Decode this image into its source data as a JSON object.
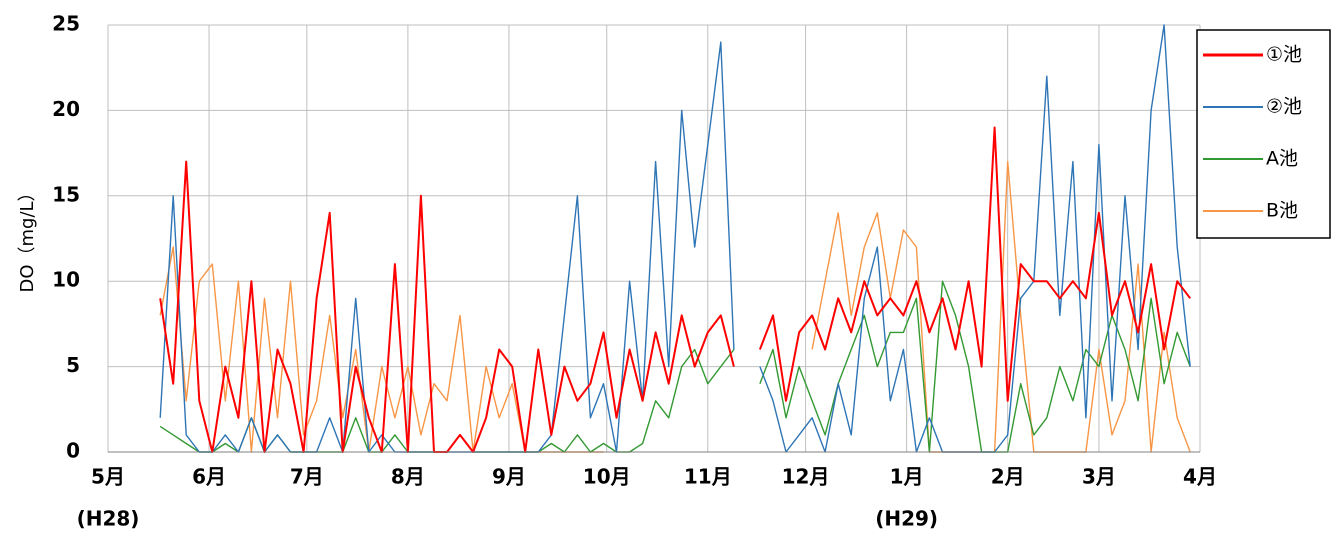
{
  "chart_data": {
    "type": "line",
    "y_label": "DO（mg/L）",
    "x": [
      16,
      20,
      24,
      28,
      32,
      36,
      40,
      44,
      48,
      52,
      56,
      60,
      64,
      68,
      72,
      76,
      80,
      84,
      88,
      92,
      96,
      100,
      104,
      108,
      112,
      116,
      120,
      124,
      128,
      132,
      136,
      140,
      144,
      148,
      152,
      156,
      160,
      164,
      168,
      172,
      176,
      180,
      184,
      188,
      192,
      196,
      200,
      204,
      208,
      212,
      216,
      220,
      224,
      228,
      232,
      236,
      240,
      244,
      248,
      252,
      256,
      260,
      264,
      268,
      272,
      276,
      280,
      284,
      288,
      292,
      296,
      300,
      304,
      308,
      312,
      316,
      320,
      324,
      328,
      332
    ],
    "xlim": [
      0,
      335
    ],
    "xticks": [
      {
        "value": 0,
        "label": "5月"
      },
      {
        "value": 31,
        "label": "6月"
      },
      {
        "value": 61,
        "label": "7月"
      },
      {
        "value": 92,
        "label": "8月"
      },
      {
        "value": 123,
        "label": "9月"
      },
      {
        "value": 153,
        "label": "10月"
      },
      {
        "value": 184,
        "label": "11月"
      },
      {
        "value": 214,
        "label": "12月"
      },
      {
        "value": 245,
        "label": "1月"
      },
      {
        "value": 276,
        "label": "2月"
      },
      {
        "value": 304,
        "label": "3月"
      },
      {
        "value": 335,
        "label": "4月"
      }
    ],
    "x_era_labels": [
      {
        "value": 0,
        "label": "(H28)"
      },
      {
        "value": 245,
        "label": "(H29)"
      }
    ],
    "ylim": [
      0,
      25
    ],
    "yticks": [
      0,
      5,
      10,
      15,
      20,
      25
    ],
    "grid": true,
    "legend": "right",
    "series": [
      {
        "name": "①池",
        "color": "#ff0000",
        "values": [
          9,
          4,
          17,
          3,
          0,
          5,
          2,
          10,
          0,
          6,
          4,
          0,
          9,
          14,
          0,
          5,
          2,
          0,
          11,
          0,
          15,
          0,
          0,
          1,
          0,
          2,
          6,
          5,
          0,
          6,
          1,
          5,
          3,
          4,
          7,
          2,
          6,
          3,
          7,
          4,
          8,
          5,
          7,
          8,
          5,
          null,
          6,
          8,
          3,
          7,
          8,
          6,
          9,
          7,
          10,
          8,
          9,
          8,
          10,
          7,
          9,
          6,
          10,
          5,
          19,
          3,
          11,
          10,
          10,
          9,
          10,
          9,
          14,
          8,
          10,
          7,
          11,
          6,
          10,
          9
        ]
      },
      {
        "name": "②池",
        "color": "#2e75b6",
        "values": [
          2,
          15,
          1,
          0,
          0,
          1,
          0,
          2,
          0,
          1,
          0,
          0,
          0,
          2,
          0,
          9,
          0,
          1,
          0,
          0,
          0,
          0,
          0,
          0,
          0,
          0,
          0,
          0,
          0,
          0,
          1,
          8,
          15,
          2,
          4,
          0,
          10,
          3,
          17,
          5,
          20,
          12,
          18,
          24,
          6,
          null,
          5,
          3,
          0,
          1,
          2,
          0,
          4,
          1,
          9,
          12,
          3,
          6,
          0,
          2,
          0,
          0,
          0,
          0,
          0,
          1,
          9,
          10,
          22,
          8,
          17,
          2,
          18,
          3,
          15,
          6,
          20,
          25,
          12,
          5
        ]
      },
      {
        "name": "A池",
        "color": "#339933",
        "values": [
          1.5,
          1,
          0.5,
          0,
          0,
          0.5,
          0,
          2,
          0,
          1,
          0,
          0,
          0,
          0,
          0,
          2,
          0,
          0,
          1,
          0,
          0,
          0,
          0,
          1,
          0,
          0,
          0,
          0,
          0,
          0,
          0.5,
          0,
          1,
          0,
          0.5,
          0,
          0,
          0.5,
          3,
          2,
          5,
          6,
          4,
          5,
          6,
          null,
          4,
          6,
          2,
          5,
          3,
          1,
          4,
          6,
          8,
          5,
          7,
          7,
          9,
          0,
          10,
          8,
          5,
          0,
          0,
          0,
          4,
          1,
          2,
          5,
          3,
          6,
          5,
          8,
          6,
          3,
          9,
          4,
          7,
          5
        ]
      },
      {
        "name": "B池",
        "color": "#f79646",
        "values": [
          8,
          12,
          3,
          10,
          11,
          3,
          10,
          0,
          9,
          2,
          10,
          1,
          3,
          8,
          2,
          6,
          0,
          5,
          2,
          5,
          1,
          4,
          3,
          8,
          0,
          5,
          2,
          4,
          0,
          0,
          0,
          0,
          0,
          0,
          0,
          null,
          null,
          null,
          null,
          null,
          null,
          null,
          null,
          null,
          null,
          null,
          null,
          null,
          null,
          null,
          6,
          10,
          14,
          8,
          12,
          14,
          9,
          13,
          12,
          0,
          0,
          0,
          0,
          0,
          0,
          17,
          8,
          0,
          0,
          0,
          0,
          0,
          6,
          1,
          3,
          11,
          0,
          7,
          2,
          0
        ]
      }
    ]
  }
}
